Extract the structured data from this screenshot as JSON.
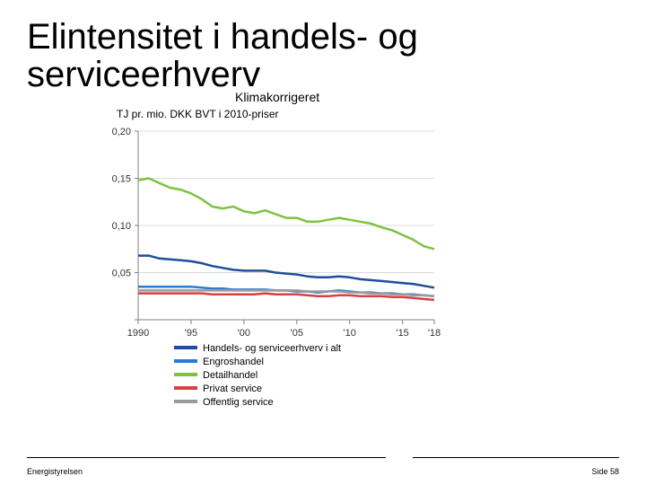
{
  "title": "Elintensitet i handels- og serviceerhverv",
  "subtitle": "Klimakorrigeret",
  "axis_title": "TJ pr. mio. DKK BVT i 2010-priser",
  "footer_left": "Energistyrelsen",
  "footer_right": "Side 58",
  "chart": {
    "type": "line",
    "background_color": "#ffffff",
    "plot_bg": "#ffffff",
    "grid_color": "#dcdcdc",
    "axis_color": "#808080",
    "tick_fontsize": 11,
    "legend_fontsize": 11,
    "x": {
      "min": 1990,
      "max": 2018,
      "ticks": [
        1990,
        1995,
        2000,
        2005,
        2010,
        2015,
        2018
      ],
      "labels": [
        "1990",
        "'95",
        "'00",
        "'05",
        "'10",
        "'15",
        "'18"
      ]
    },
    "y": {
      "min": 0,
      "max": 0.2,
      "ticks": [
        0,
        0.05,
        0.1,
        0.15,
        0.2
      ],
      "labels": [
        "",
        "0,05",
        "0,10",
        "0,15",
        "0,20"
      ]
    },
    "line_width": 2.5,
    "series": [
      {
        "name": "Handels- og serviceerhverv i alt",
        "color": "#1f4e9c",
        "data": [
          [
            1990,
            0.068
          ],
          [
            1991,
            0.068
          ],
          [
            1992,
            0.065
          ],
          [
            1993,
            0.064
          ],
          [
            1994,
            0.063
          ],
          [
            1995,
            0.062
          ],
          [
            1996,
            0.06
          ],
          [
            1997,
            0.057
          ],
          [
            1998,
            0.055
          ],
          [
            1999,
            0.053
          ],
          [
            2000,
            0.052
          ],
          [
            2001,
            0.052
          ],
          [
            2002,
            0.052
          ],
          [
            2003,
            0.05
          ],
          [
            2004,
            0.049
          ],
          [
            2005,
            0.048
          ],
          [
            2006,
            0.046
          ],
          [
            2007,
            0.045
          ],
          [
            2008,
            0.045
          ],
          [
            2009,
            0.046
          ],
          [
            2010,
            0.045
          ],
          [
            2011,
            0.043
          ],
          [
            2012,
            0.042
          ],
          [
            2013,
            0.041
          ],
          [
            2014,
            0.04
          ],
          [
            2015,
            0.039
          ],
          [
            2016,
            0.038
          ],
          [
            2017,
            0.036
          ],
          [
            2018,
            0.034
          ]
        ]
      },
      {
        "name": "Engroshandel",
        "color": "#2b7bd6",
        "data": [
          [
            1990,
            0.035
          ],
          [
            1991,
            0.035
          ],
          [
            1992,
            0.035
          ],
          [
            1993,
            0.035
          ],
          [
            1994,
            0.035
          ],
          [
            1995,
            0.035
          ],
          [
            1996,
            0.034
          ],
          [
            1997,
            0.033
          ],
          [
            1998,
            0.033
          ],
          [
            1999,
            0.032
          ],
          [
            2000,
            0.032
          ],
          [
            2001,
            0.032
          ],
          [
            2002,
            0.032
          ],
          [
            2003,
            0.031
          ],
          [
            2004,
            0.031
          ],
          [
            2005,
            0.03
          ],
          [
            2006,
            0.03
          ],
          [
            2007,
            0.029
          ],
          [
            2008,
            0.03
          ],
          [
            2009,
            0.031
          ],
          [
            2010,
            0.03
          ],
          [
            2011,
            0.029
          ],
          [
            2012,
            0.029
          ],
          [
            2013,
            0.028
          ],
          [
            2014,
            0.028
          ],
          [
            2015,
            0.027
          ],
          [
            2016,
            0.027
          ],
          [
            2017,
            0.026
          ],
          [
            2018,
            0.025
          ]
        ]
      },
      {
        "name": "Detailhandel",
        "color": "#7fc241",
        "data": [
          [
            1990,
            0.148
          ],
          [
            1991,
            0.15
          ],
          [
            1992,
            0.145
          ],
          [
            1993,
            0.14
          ],
          [
            1994,
            0.138
          ],
          [
            1995,
            0.134
          ],
          [
            1996,
            0.128
          ],
          [
            1997,
            0.12
          ],
          [
            1998,
            0.118
          ],
          [
            1999,
            0.12
          ],
          [
            2000,
            0.115
          ],
          [
            2001,
            0.113
          ],
          [
            2002,
            0.116
          ],
          [
            2003,
            0.112
          ],
          [
            2004,
            0.108
          ],
          [
            2005,
            0.108
          ],
          [
            2006,
            0.104
          ],
          [
            2007,
            0.104
          ],
          [
            2008,
            0.106
          ],
          [
            2009,
            0.108
          ],
          [
            2010,
            0.106
          ],
          [
            2011,
            0.104
          ],
          [
            2012,
            0.102
          ],
          [
            2013,
            0.098
          ],
          [
            2014,
            0.095
          ],
          [
            2015,
            0.09
          ],
          [
            2016,
            0.085
          ],
          [
            2017,
            0.078
          ],
          [
            2018,
            0.075
          ]
        ]
      },
      {
        "name": "Privat service",
        "color": "#d84040",
        "data": [
          [
            1990,
            0.028
          ],
          [
            1991,
            0.028
          ],
          [
            1992,
            0.028
          ],
          [
            1993,
            0.028
          ],
          [
            1994,
            0.028
          ],
          [
            1995,
            0.028
          ],
          [
            1996,
            0.028
          ],
          [
            1997,
            0.027
          ],
          [
            1998,
            0.027
          ],
          [
            1999,
            0.027
          ],
          [
            2000,
            0.027
          ],
          [
            2001,
            0.027
          ],
          [
            2002,
            0.028
          ],
          [
            2003,
            0.027
          ],
          [
            2004,
            0.027
          ],
          [
            2005,
            0.027
          ],
          [
            2006,
            0.026
          ],
          [
            2007,
            0.025
          ],
          [
            2008,
            0.025
          ],
          [
            2009,
            0.026
          ],
          [
            2010,
            0.026
          ],
          [
            2011,
            0.025
          ],
          [
            2012,
            0.025
          ],
          [
            2013,
            0.025
          ],
          [
            2014,
            0.024
          ],
          [
            2015,
            0.024
          ],
          [
            2016,
            0.023
          ],
          [
            2017,
            0.022
          ],
          [
            2018,
            0.021
          ]
        ]
      },
      {
        "name": "Offentlig service",
        "color": "#9a9a9a",
        "data": [
          [
            1990,
            0.031
          ],
          [
            1991,
            0.031
          ],
          [
            1992,
            0.031
          ],
          [
            1993,
            0.031
          ],
          [
            1994,
            0.031
          ],
          [
            1995,
            0.031
          ],
          [
            1996,
            0.031
          ],
          [
            1997,
            0.031
          ],
          [
            1998,
            0.031
          ],
          [
            1999,
            0.031
          ],
          [
            2000,
            0.031
          ],
          [
            2001,
            0.031
          ],
          [
            2002,
            0.031
          ],
          [
            2003,
            0.031
          ],
          [
            2004,
            0.031
          ],
          [
            2005,
            0.031
          ],
          [
            2006,
            0.03
          ],
          [
            2007,
            0.03
          ],
          [
            2008,
            0.03
          ],
          [
            2009,
            0.03
          ],
          [
            2010,
            0.029
          ],
          [
            2011,
            0.029
          ],
          [
            2012,
            0.028
          ],
          [
            2013,
            0.028
          ],
          [
            2014,
            0.027
          ],
          [
            2015,
            0.027
          ],
          [
            2016,
            0.026
          ],
          [
            2017,
            0.026
          ],
          [
            2018,
            0.025
          ]
        ]
      }
    ],
    "legend": {
      "position": "bottom",
      "swatch_w": 26,
      "swatch_h": 4
    }
  }
}
